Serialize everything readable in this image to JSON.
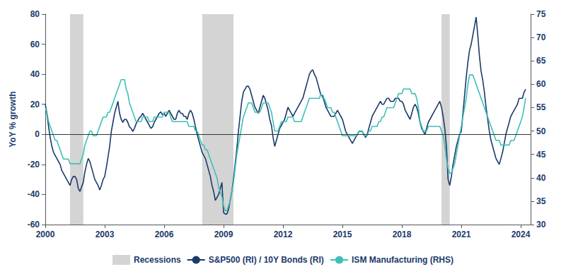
{
  "chart_data": {
    "type": "line",
    "ylabel": "YoY % growth",
    "xlim": [
      2000.0,
      2024.5
    ],
    "xticks": [
      2000,
      2003,
      2006,
      2009,
      2012,
      2015,
      2018,
      2021,
      2024
    ],
    "ylim": [
      -60,
      80
    ],
    "yticks": [
      -60,
      -40,
      -20,
      0,
      20,
      40,
      60,
      80
    ],
    "y2lim": [
      30,
      75
    ],
    "y2ticks": [
      30,
      35,
      40,
      45,
      50,
      55,
      60,
      65,
      70,
      75
    ],
    "grid": false,
    "legend": "bottom",
    "hlines": [
      0
    ],
    "recessions": {
      "name": "Recessions",
      "color": "#d4d4d4",
      "periods": [
        [
          2001.25,
          2001.92
        ],
        [
          2007.92,
          2009.5
        ],
        [
          2020.0,
          2020.42
        ]
      ]
    },
    "x": [
      2000.0,
      2000.083,
      2000.167,
      2000.25,
      2000.333,
      2000.417,
      2000.5,
      2000.583,
      2000.667,
      2000.75,
      2000.833,
      2000.917,
      2001.0,
      2001.083,
      2001.167,
      2001.25,
      2001.333,
      2001.417,
      2001.5,
      2001.583,
      2001.667,
      2001.75,
      2001.833,
      2001.917,
      2002.0,
      2002.083,
      2002.167,
      2002.25,
      2002.333,
      2002.417,
      2002.5,
      2002.583,
      2002.667,
      2002.75,
      2002.833,
      2002.917,
      2003.0,
      2003.083,
      2003.167,
      2003.25,
      2003.333,
      2003.417,
      2003.5,
      2003.583,
      2003.667,
      2003.75,
      2003.833,
      2003.917,
      2004.0,
      2004.083,
      2004.167,
      2004.25,
      2004.333,
      2004.417,
      2004.5,
      2004.583,
      2004.667,
      2004.75,
      2004.833,
      2004.917,
      2005.0,
      2005.083,
      2005.167,
      2005.25,
      2005.333,
      2005.417,
      2005.5,
      2005.583,
      2005.667,
      2005.75,
      2005.833,
      2005.917,
      2006.0,
      2006.083,
      2006.167,
      2006.25,
      2006.333,
      2006.417,
      2006.5,
      2006.583,
      2006.667,
      2006.75,
      2006.833,
      2006.917,
      2007.0,
      2007.083,
      2007.167,
      2007.25,
      2007.333,
      2007.417,
      2007.5,
      2007.583,
      2007.667,
      2007.75,
      2007.833,
      2007.917,
      2008.0,
      2008.083,
      2008.167,
      2008.25,
      2008.333,
      2008.417,
      2008.5,
      2008.583,
      2008.667,
      2008.75,
      2008.833,
      2008.917,
      2009.0,
      2009.083,
      2009.167,
      2009.25,
      2009.333,
      2009.417,
      2009.5,
      2009.583,
      2009.667,
      2009.75,
      2009.833,
      2009.917,
      2010.0,
      2010.083,
      2010.167,
      2010.25,
      2010.333,
      2010.417,
      2010.5,
      2010.583,
      2010.667,
      2010.75,
      2010.833,
      2010.917,
      2011.0,
      2011.083,
      2011.167,
      2011.25,
      2011.333,
      2011.417,
      2011.5,
      2011.583,
      2011.667,
      2011.75,
      2011.833,
      2011.917,
      2012.0,
      2012.083,
      2012.167,
      2012.25,
      2012.333,
      2012.417,
      2012.5,
      2012.583,
      2012.667,
      2012.75,
      2012.833,
      2012.917,
      2013.0,
      2013.083,
      2013.167,
      2013.25,
      2013.333,
      2013.417,
      2013.5,
      2013.583,
      2013.667,
      2013.75,
      2013.833,
      2013.917,
      2014.0,
      2014.083,
      2014.167,
      2014.25,
      2014.333,
      2014.417,
      2014.5,
      2014.583,
      2014.667,
      2014.75,
      2014.833,
      2014.917,
      2015.0,
      2015.083,
      2015.167,
      2015.25,
      2015.333,
      2015.417,
      2015.5,
      2015.583,
      2015.667,
      2015.75,
      2015.833,
      2015.917,
      2016.0,
      2016.083,
      2016.167,
      2016.25,
      2016.333,
      2016.417,
      2016.5,
      2016.583,
      2016.667,
      2016.75,
      2016.833,
      2016.917,
      2017.0,
      2017.083,
      2017.167,
      2017.25,
      2017.333,
      2017.417,
      2017.5,
      2017.583,
      2017.667,
      2017.75,
      2017.833,
      2017.917,
      2018.0,
      2018.083,
      2018.167,
      2018.25,
      2018.333,
      2018.417,
      2018.5,
      2018.583,
      2018.667,
      2018.75,
      2018.833,
      2018.917,
      2019.0,
      2019.083,
      2019.167,
      2019.25,
      2019.333,
      2019.417,
      2019.5,
      2019.583,
      2019.667,
      2019.75,
      2019.833,
      2019.917,
      2020.0,
      2020.083,
      2020.167,
      2020.25,
      2020.333,
      2020.417,
      2020.5,
      2020.583,
      2020.667,
      2020.75,
      2020.833,
      2020.917,
      2021.0,
      2021.083,
      2021.167,
      2021.25,
      2021.333,
      2021.417,
      2021.5,
      2021.583,
      2021.667,
      2021.75,
      2021.833,
      2021.917,
      2022.0,
      2022.083,
      2022.167,
      2022.25,
      2022.333,
      2022.417,
      2022.5,
      2022.583,
      2022.667,
      2022.75,
      2022.833,
      2022.917,
      2023.0,
      2023.083,
      2023.167,
      2023.25,
      2023.333,
      2023.417,
      2023.5,
      2023.583,
      2023.667,
      2023.75,
      2023.833,
      2023.917,
      2024.0,
      2024.083,
      2024.167,
      2024.25
    ],
    "series": [
      {
        "name": "S&P500 (RI) / 10Y Bonds (RI)",
        "color": "#1a3a6b",
        "values": [
          20,
          14,
          5,
          -2,
          -8,
          -12,
          -14,
          -16,
          -18,
          -20,
          -24,
          -26,
          -28,
          -30,
          -32,
          -34,
          -30,
          -28,
          -28,
          -30,
          -36,
          -38,
          -35,
          -32,
          -25,
          -20,
          -16,
          -18,
          -22,
          -26,
          -30,
          -32,
          -34,
          -37,
          -34,
          -30,
          -28,
          -22,
          -15,
          -8,
          2,
          8,
          14,
          18,
          22,
          14,
          10,
          8,
          10,
          10,
          8,
          5,
          4,
          2,
          4,
          7,
          9,
          11,
          12,
          14,
          12,
          10,
          8,
          6,
          4,
          5,
          8,
          10,
          12,
          14,
          15,
          13,
          14,
          12,
          14,
          16,
          14,
          12,
          10,
          10,
          14,
          16,
          14,
          14,
          12,
          12,
          10,
          14,
          16,
          14,
          10,
          5,
          0,
          -4,
          -8,
          -12,
          -14,
          -16,
          -20,
          -24,
          -28,
          -34,
          -38,
          -44,
          -42,
          -40,
          -36,
          -32,
          -52,
          -53,
          -53,
          -50,
          -44,
          -38,
          -30,
          -20,
          -10,
          2,
          12,
          22,
          28,
          30,
          32,
          32,
          30,
          26,
          22,
          18,
          16,
          14,
          18,
          22,
          26,
          24,
          20,
          16,
          10,
          6,
          -2,
          -8,
          -4,
          0,
          4,
          6,
          8,
          10,
          14,
          18,
          16,
          14,
          12,
          14,
          16,
          18,
          20,
          22,
          24,
          28,
          32,
          36,
          40,
          42,
          43,
          40,
          38,
          34,
          30,
          26,
          26,
          22,
          18,
          16,
          14,
          12,
          12,
          12,
          14,
          16,
          14,
          12,
          10,
          6,
          2,
          0,
          -2,
          -4,
          -6,
          -4,
          -2,
          0,
          2,
          2,
          2,
          0,
          -2,
          0,
          4,
          8,
          12,
          14,
          16,
          18,
          20,
          22,
          20,
          20,
          22,
          24,
          24,
          22,
          22,
          22,
          24,
          24,
          24,
          22,
          22,
          20,
          16,
          14,
          12,
          10,
          14,
          18,
          20,
          18,
          14,
          8,
          4,
          2,
          0,
          4,
          8,
          10,
          12,
          14,
          16,
          18,
          20,
          22,
          18,
          12,
          4,
          -8,
          -30,
          -34,
          -28,
          -20,
          -14,
          -8,
          -4,
          0,
          2,
          14,
          26,
          38,
          48,
          56,
          60,
          66,
          72,
          78,
          66,
          52,
          42,
          36,
          28,
          18,
          10,
          2,
          -4,
          -8,
          -12,
          -16,
          -18,
          -20,
          -16,
          -12,
          -6,
          0,
          4,
          8,
          12,
          14,
          16,
          18,
          20,
          24,
          24,
          24,
          28,
          30
        ]
      },
      {
        "name": "ISM Manufacturing (RHS)",
        "color": "#3dbfb8",
        "axis": "y2",
        "values": [
          55,
          54,
          52,
          51,
          50,
          49,
          48,
          48,
          47,
          46,
          45,
          44,
          44,
          44,
          44,
          43,
          43,
          43,
          43,
          43,
          43,
          43,
          44,
          45,
          47,
          48,
          49,
          50,
          50,
          49,
          49,
          49,
          50,
          51,
          52,
          53,
          53,
          53,
          54,
          54,
          55,
          56,
          57,
          58,
          59,
          60,
          61,
          61,
          61,
          59,
          58,
          56,
          55,
          54,
          53,
          52,
          52,
          52,
          52,
          53,
          53,
          53,
          53,
          52,
          52,
          52,
          53,
          53,
          53,
          53,
          53,
          53,
          54,
          54,
          54,
          54,
          53,
          52,
          52,
          52,
          52,
          52,
          52,
          52,
          52,
          52,
          52,
          51,
          51,
          51,
          51,
          50,
          50,
          49,
          48,
          47,
          47,
          46,
          46,
          45,
          44,
          43,
          42,
          41,
          40,
          38,
          37,
          36,
          34,
          33,
          33,
          34,
          35,
          37,
          39,
          42,
          45,
          47,
          49,
          51,
          53,
          54,
          55,
          56,
          56,
          56,
          55,
          54,
          54,
          54,
          54,
          55,
          56,
          56,
          56,
          56,
          55,
          54,
          52,
          50,
          50,
          50,
          51,
          52,
          52,
          52,
          52,
          53,
          53,
          53,
          53,
          52,
          52,
          52,
          52,
          52,
          53,
          54,
          55,
          56,
          57,
          57,
          57,
          57,
          57,
          57,
          57,
          58,
          57,
          57,
          56,
          55,
          55,
          55,
          54,
          54,
          53,
          52,
          51,
          50,
          49,
          49,
          49,
          49,
          49,
          49,
          49,
          49,
          49,
          49,
          50,
          50,
          50,
          49,
          49,
          49,
          50,
          50,
          51,
          51,
          51,
          51,
          52,
          52,
          53,
          53,
          54,
          55,
          55,
          55,
          55,
          55,
          56,
          57,
          58,
          58,
          58,
          59,
          59,
          59,
          59,
          59,
          58,
          58,
          58,
          57,
          55,
          52,
          51,
          50,
          50,
          50,
          51,
          51,
          51,
          51,
          51,
          51,
          51,
          51,
          50,
          49,
          47,
          44,
          42,
          41,
          41,
          42,
          43,
          45,
          47,
          49,
          51,
          53,
          55,
          57,
          60,
          62,
          62,
          62,
          61,
          60,
          59,
          58,
          57,
          56,
          55,
          54,
          53,
          52,
          51,
          50,
          49,
          48,
          48,
          48,
          47,
          47,
          47,
          47,
          47,
          47,
          48,
          48,
          48,
          49,
          50,
          51,
          52,
          53,
          55,
          57
        ]
      }
    ]
  }
}
